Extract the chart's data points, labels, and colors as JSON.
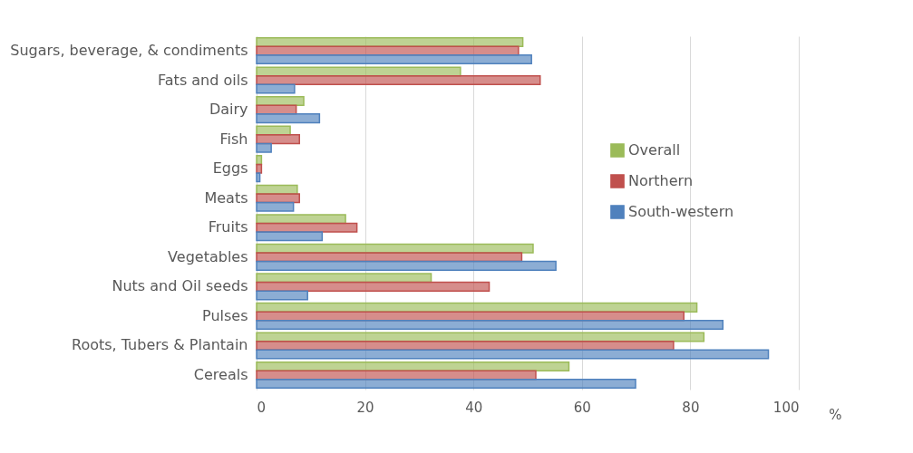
{
  "chart_data": {
    "type": "bar",
    "orientation": "horizontal",
    "xlabel": "%",
    "categories": [
      "Sugars, beverage, & condiments",
      "Fats and oils",
      "Dairy",
      "Fish",
      "Eggs",
      "Meats",
      "Fruits",
      "Vegetables",
      "Nuts and Oil seeds",
      "Pulses",
      "Roots, Tubers & Plantain",
      "Cereals"
    ],
    "series": [
      {
        "name": "Overall",
        "color": "#9bbb59",
        "values": [
          49.1,
          37.6,
          8.7,
          6.2,
          0.9,
          7.5,
          16.4,
          51.0,
          32.2,
          81.2,
          82.5,
          57.6
        ]
      },
      {
        "name": "Northern",
        "color": "#c0504d",
        "values": [
          48.3,
          52.3,
          7.3,
          7.9,
          0.9,
          7.9,
          18.5,
          48.9,
          42.9,
          78.8,
          76.9,
          51.5
        ]
      },
      {
        "name": "South-western",
        "color": "#4f81bd",
        "values": [
          50.7,
          7.0,
          11.6,
          2.7,
          0.6,
          6.8,
          12.1,
          55.2,
          9.4,
          86.0,
          94.4,
          69.9
        ]
      }
    ],
    "xlim": [
      0,
      100
    ],
    "xticks": [
      0,
      20,
      40,
      60,
      80,
      100
    ],
    "grid": "x",
    "legend": "right"
  }
}
